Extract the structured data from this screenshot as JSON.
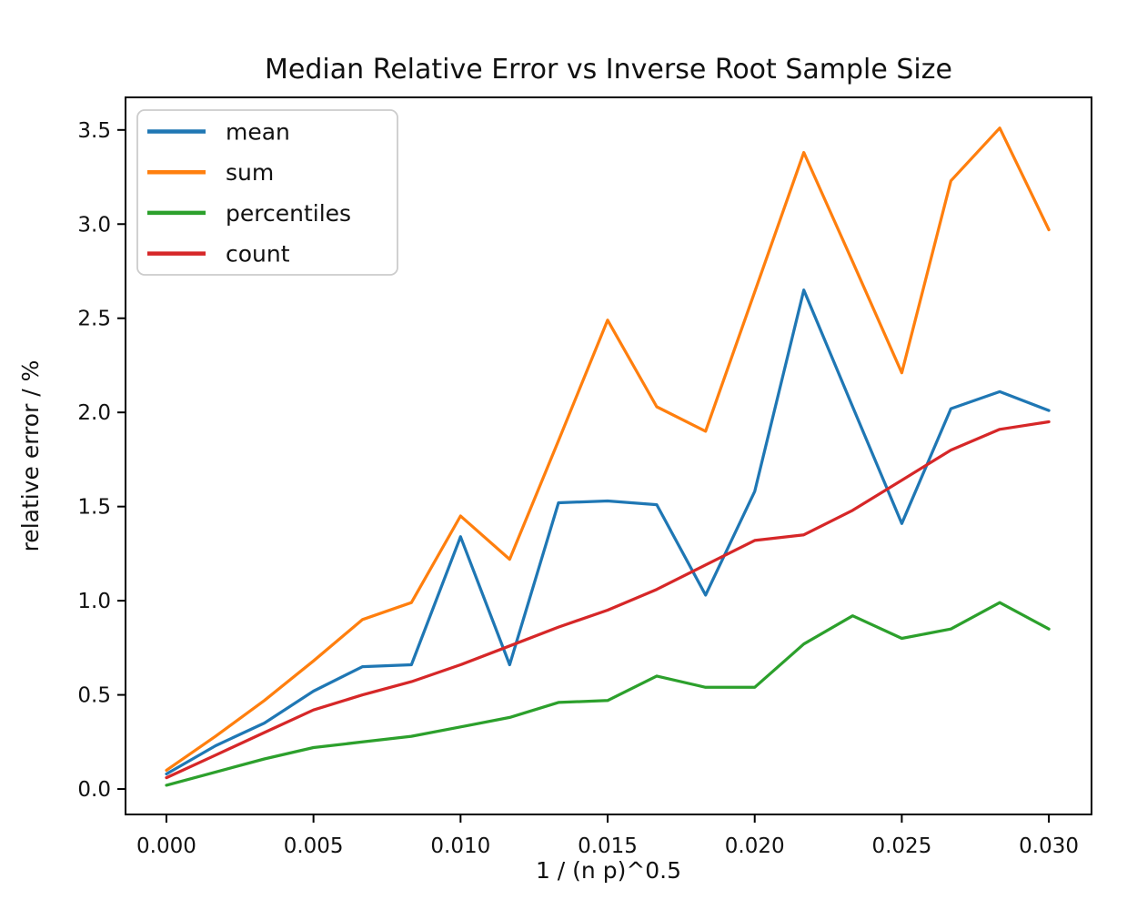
{
  "chart_data": {
    "type": "line",
    "title": "Median Relative Error vs Inverse Root Sample Size",
    "xlabel": "1 / (n p)^0.5",
    "ylabel": "relative error / %",
    "grid": false,
    "legend_position": "upper left",
    "xlim": [
      -0.00139,
      0.03145
    ],
    "ylim": [
      -0.135,
      3.673
    ],
    "x_ticks": [
      0.0,
      0.005,
      0.01,
      0.015,
      0.02,
      0.025,
      0.03
    ],
    "x_tick_labels": [
      "0.000",
      "0.005",
      "0.010",
      "0.015",
      "0.020",
      "0.025",
      "0.030"
    ],
    "y_ticks": [
      0.0,
      0.5,
      1.0,
      1.5,
      2.0,
      2.5,
      3.0,
      3.5
    ],
    "y_tick_labels": [
      "0.0",
      "0.5",
      "1.0",
      "1.5",
      "2.0",
      "2.5",
      "3.0",
      "3.5"
    ],
    "x": [
      0.0,
      0.00167,
      0.00333,
      0.005,
      0.00667,
      0.00833,
      0.01,
      0.01167,
      0.01333,
      0.015,
      0.01667,
      0.01833,
      0.02,
      0.02167,
      0.02333,
      0.025,
      0.02667,
      0.02833,
      0.03
    ],
    "series": [
      {
        "name": "mean",
        "color": "#1f77b4",
        "values": [
          0.08,
          0.23,
          0.35,
          0.52,
          0.65,
          0.66,
          1.34,
          0.66,
          1.52,
          1.53,
          1.51,
          1.03,
          1.58,
          2.65,
          2.03,
          1.41,
          2.02,
          2.11,
          2.01
        ]
      },
      {
        "name": "sum",
        "color": "#ff7f0e",
        "values": [
          0.1,
          0.28,
          0.47,
          0.68,
          0.9,
          0.99,
          1.45,
          1.22,
          1.85,
          2.49,
          2.03,
          1.9,
          2.64,
          3.38,
          2.8,
          2.21,
          3.23,
          3.51,
          2.97
        ]
      },
      {
        "name": "percentiles",
        "color": "#2ca02c",
        "values": [
          0.02,
          0.09,
          0.16,
          0.22,
          0.25,
          0.28,
          0.33,
          0.38,
          0.46,
          0.47,
          0.6,
          0.54,
          0.54,
          0.77,
          0.92,
          0.8,
          0.85,
          0.99,
          0.85
        ]
      },
      {
        "name": "count",
        "color": "#d62728",
        "values": [
          0.06,
          0.18,
          0.3,
          0.42,
          0.5,
          0.57,
          0.66,
          0.76,
          0.86,
          0.95,
          1.06,
          1.19,
          1.32,
          1.35,
          1.48,
          1.64,
          1.8,
          1.91,
          1.95
        ]
      }
    ]
  }
}
